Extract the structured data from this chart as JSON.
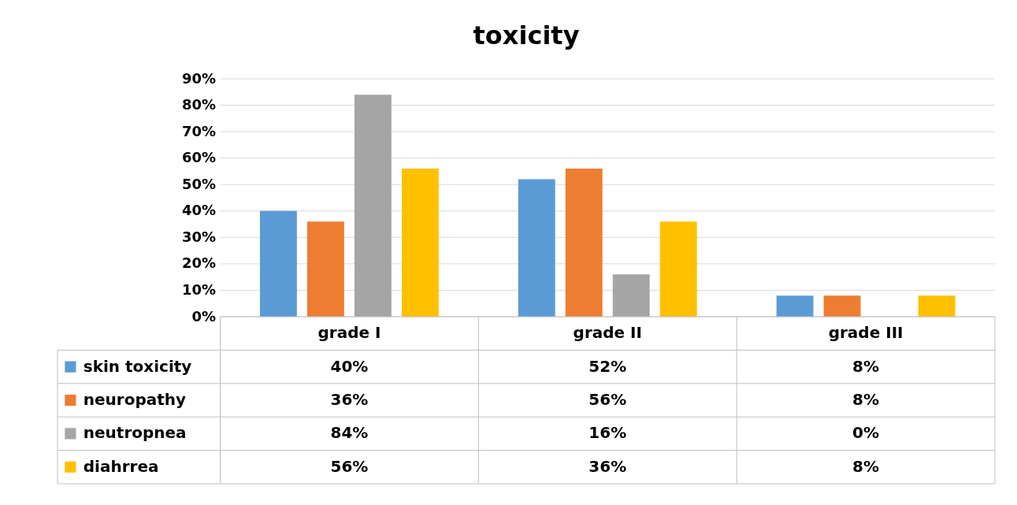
{
  "chart_data": {
    "type": "bar",
    "title": "toxicity",
    "categories": [
      "grade I",
      "grade II",
      "grade III"
    ],
    "series": [
      {
        "name": "skin toxicity",
        "color": "#5b9bd5",
        "values": [
          40,
          52,
          8
        ],
        "value_labels": [
          "40%",
          "52%",
          "8%"
        ]
      },
      {
        "name": "neuropathy",
        "color": "#ed7d31",
        "values": [
          36,
          56,
          8
        ],
        "value_labels": [
          "36%",
          "56%",
          "8%"
        ]
      },
      {
        "name": "neutropnea",
        "color": "#a5a5a5",
        "values": [
          84,
          16,
          0
        ],
        "value_labels": [
          "84%",
          "16%",
          "0%"
        ]
      },
      {
        "name": "diahrrea",
        "color": "#ffc000",
        "values": [
          56,
          36,
          8
        ],
        "value_labels": [
          "56%",
          "36%",
          "8%"
        ]
      }
    ],
    "ylim": [
      0,
      90
    ],
    "yticks": [
      {
        "value": 0,
        "label": "0%"
      },
      {
        "value": 10,
        "label": "10%"
      },
      {
        "value": 20,
        "label": "20%"
      },
      {
        "value": 30,
        "label": "30%"
      },
      {
        "value": 40,
        "label": "40%"
      },
      {
        "value": 50,
        "label": "50%"
      },
      {
        "value": 60,
        "label": "60%"
      },
      {
        "value": 70,
        "label": "70%"
      },
      {
        "value": 80,
        "label": "80%"
      },
      {
        "value": 90,
        "label": "90%"
      }
    ],
    "grid": "y",
    "legend": "bottom"
  }
}
